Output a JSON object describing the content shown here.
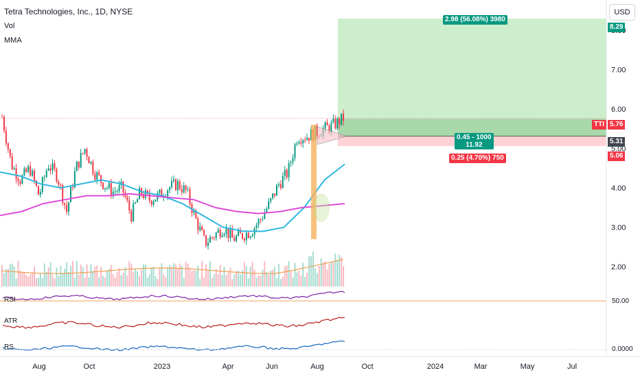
{
  "symbol": {
    "title": "Tetra Technologies, Inc., 1D, NYSE",
    "ticker": "TTI"
  },
  "legend": {
    "vol_label": "Vol",
    "mma_label": "MMA"
  },
  "currency": "USD",
  "panes": {
    "rsi_label": "RSI",
    "atr_label": "ATR",
    "rs_label": "RS"
  },
  "position_tool": {
    "target_label": "2.98 (56.08%) 3980",
    "stop_label": "0.25 (4.70%) 750",
    "center_line1": "0.45 - 1000",
    "center_line2": "11.92"
  },
  "price_tags": [
    {
      "value": "8.29",
      "bg": "#089981",
      "fg": "#ffffff"
    },
    {
      "value": "5.76",
      "bg": "#f23645",
      "fg": "#ffffff"
    },
    {
      "value": "5.31",
      "bg": "#434651",
      "fg": "#ffffff"
    },
    {
      "value": "5.06",
      "bg": "#f23645",
      "fg": "#ffffff"
    }
  ],
  "right_axis": {
    "rsi_level": "50.00",
    "rs_level": "0.0000"
  },
  "colors": {
    "up": "#089981",
    "down": "#f23645",
    "ma_fast": "#2eb6e0",
    "ma_slow": "#e04ad8",
    "vol_ma": "#f0a050",
    "rsi": "#7b1fa2",
    "atr": "#b71c1c",
    "rs": "#1565c0",
    "target_zone": "#c8ecc6",
    "stop_zone": "#ffcdd2",
    "entry_zone": "#a5d6a7"
  },
  "chart_data": {
    "type": "candlestick",
    "title": "Tetra Technologies, Inc., 1D, NYSE",
    "y_axis_ticks": [
      2.0,
      3.0,
      4.0,
      5.0,
      6.0,
      7.0,
      8.0
    ],
    "ylim": [
      1.5,
      8.5
    ],
    "x_axis_labels": [
      "Aug",
      "Oct",
      "2023",
      "Apr",
      "Jun",
      "Aug",
      "Oct",
      "2024",
      "Mar",
      "May",
      "Jul"
    ],
    "series": [
      {
        "name": "Close",
        "approx_close": [
          5.8,
          4.6,
          4.2,
          4.5,
          3.8,
          4.6,
          4.3,
          3.4,
          4.5,
          5.0,
          4.4,
          4.1,
          3.9,
          4.0,
          3.3,
          3.9,
          3.7,
          3.8,
          4.0,
          4.1,
          3.9,
          3.2,
          2.6,
          2.8,
          3.0,
          2.7,
          2.8,
          2.9,
          3.2,
          3.6,
          4.1,
          4.4,
          5.3,
          5.3,
          5.4,
          5.5,
          5.6,
          5.76
        ]
      }
    ],
    "moving_averages": [
      {
        "type": "fast",
        "approx": [
          4.4,
          4.3,
          4.1,
          4.0,
          4.1,
          4.2,
          4.1,
          3.9,
          3.8,
          3.6,
          3.3,
          3.0,
          2.9,
          2.9,
          3.0,
          3.5,
          4.2,
          4.6
        ]
      },
      {
        "type": "slow",
        "approx": [
          3.3,
          3.4,
          3.6,
          3.7,
          3.8,
          3.8,
          3.85,
          3.8,
          3.75,
          3.7,
          3.5,
          3.4,
          3.35,
          3.4,
          3.5,
          3.55,
          3.6
        ]
      }
    ],
    "annotations": {
      "long_position": {
        "entry": 5.31,
        "target": 8.29,
        "stop": 5.06,
        "target_label": "2.98 (56.08%) 3980",
        "stop_label": "0.25 (4.70%) 750",
        "center_label": "0.45 - 1000 11.92"
      },
      "current_price": 5.76,
      "horizontal_line": 5.76
    },
    "indicators": [
      {
        "name": "RSI",
        "level": 50.0
      },
      {
        "name": "ATR"
      },
      {
        "name": "RS",
        "level": 0.0
      }
    ]
  }
}
